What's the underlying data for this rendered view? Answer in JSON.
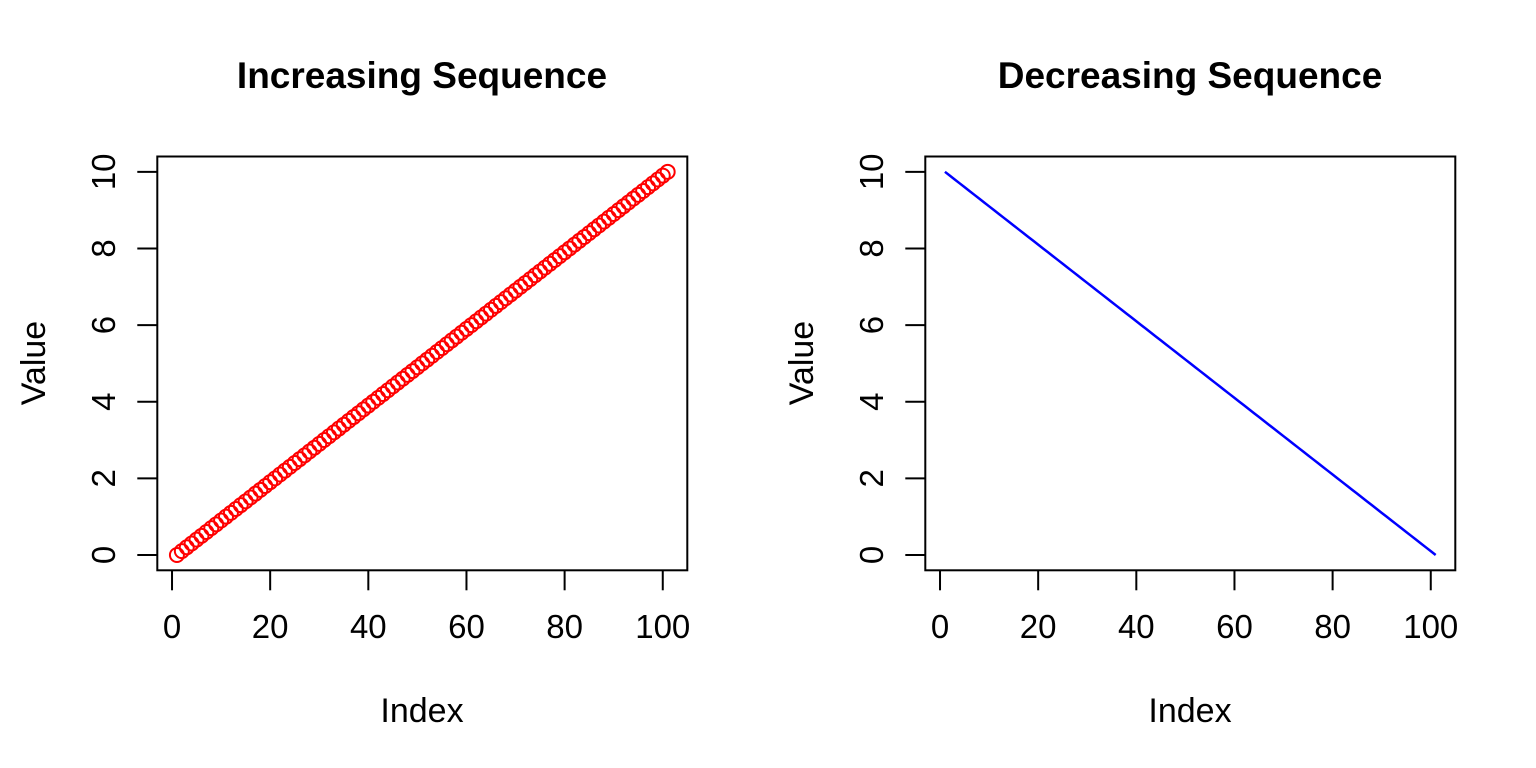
{
  "page": {
    "background": "#FFFFFF",
    "foreground": "#000000",
    "layout": "two R base-graphics panels side by side"
  },
  "chart_data": [
    {
      "type": "scatter",
      "title": "Increasing Sequence",
      "xlabel": "Index",
      "ylabel": "Value",
      "x_ticks": [
        0,
        20,
        40,
        60,
        80,
        100
      ],
      "y_ticks": [
        0,
        2,
        4,
        6,
        8,
        10
      ],
      "x_range": [
        -3,
        105
      ],
      "y_range": [
        -0.4,
        10.4
      ],
      "x_start_index": 1,
      "n_points": 101,
      "marker": "open-circle",
      "color": "#FF0000",
      "grid": false,
      "legend": "none",
      "values": [
        0,
        0.1,
        0.2,
        0.3,
        0.4,
        0.5,
        0.6,
        0.7,
        0.8,
        0.9,
        1,
        1.1,
        1.2,
        1.3,
        1.4,
        1.5,
        1.6,
        1.7,
        1.8,
        1.9,
        2,
        2.1,
        2.2,
        2.3,
        2.4,
        2.5,
        2.6,
        2.7,
        2.8,
        2.9,
        3,
        3.1,
        3.2,
        3.3,
        3.4,
        3.5,
        3.6,
        3.7,
        3.8,
        3.9,
        4,
        4.1,
        4.2,
        4.3,
        4.4,
        4.5,
        4.6,
        4.7,
        4.8,
        4.9,
        5,
        5.1,
        5.2,
        5.3,
        5.4,
        5.5,
        5.6,
        5.7,
        5.8,
        5.9,
        6,
        6.1,
        6.2,
        6.3,
        6.4,
        6.5,
        6.6,
        6.7,
        6.8,
        6.9,
        7,
        7.1,
        7.2,
        7.3,
        7.4,
        7.5,
        7.6,
        7.7,
        7.8,
        7.9,
        8,
        8.1,
        8.2,
        8.3,
        8.4,
        8.5,
        8.6,
        8.7,
        8.8,
        8.9,
        9,
        9.1,
        9.2,
        9.3,
        9.4,
        9.5,
        9.6,
        9.7,
        9.8,
        9.9,
        10
      ]
    },
    {
      "type": "line",
      "title": "Decreasing Sequence",
      "xlabel": "Index",
      "ylabel": "Value",
      "x_ticks": [
        0,
        20,
        40,
        60,
        80,
        100
      ],
      "y_ticks": [
        0,
        2,
        4,
        6,
        8,
        10
      ],
      "x_range": [
        -3,
        105
      ],
      "y_range": [
        -0.4,
        10.4
      ],
      "x_start_index": 1,
      "n_points": 101,
      "marker": "none",
      "color": "#0000FF",
      "grid": false,
      "legend": "none",
      "values": [
        10,
        9.9,
        9.8,
        9.7,
        9.6,
        9.5,
        9.4,
        9.3,
        9.2,
        9.1,
        9,
        8.9,
        8.8,
        8.7,
        8.6,
        8.5,
        8.4,
        8.3,
        8.2,
        8.1,
        8,
        7.9,
        7.8,
        7.7,
        7.6,
        7.5,
        7.4,
        7.3,
        7.2,
        7.1,
        7,
        6.9,
        6.8,
        6.7,
        6.6,
        6.5,
        6.4,
        6.3,
        6.2,
        6.1,
        6,
        5.9,
        5.8,
        5.7,
        5.6,
        5.5,
        5.4,
        5.3,
        5.2,
        5.1,
        5,
        4.9,
        4.8,
        4.7,
        4.6,
        4.5,
        4.4,
        4.3,
        4.2,
        4.1,
        4,
        3.9,
        3.8,
        3.7,
        3.6,
        3.5,
        3.4,
        3.3,
        3.2,
        3.1,
        3,
        2.9,
        2.8,
        2.7,
        2.6,
        2.5,
        2.4,
        2.3,
        2.2,
        2.1,
        2,
        1.9,
        1.8,
        1.7,
        1.6,
        1.5,
        1.4,
        1.3,
        1.2,
        1.1,
        1,
        0.9,
        0.8,
        0.7,
        0.6,
        0.5,
        0.4,
        0.3,
        0.2,
        0.1,
        0
      ]
    }
  ]
}
